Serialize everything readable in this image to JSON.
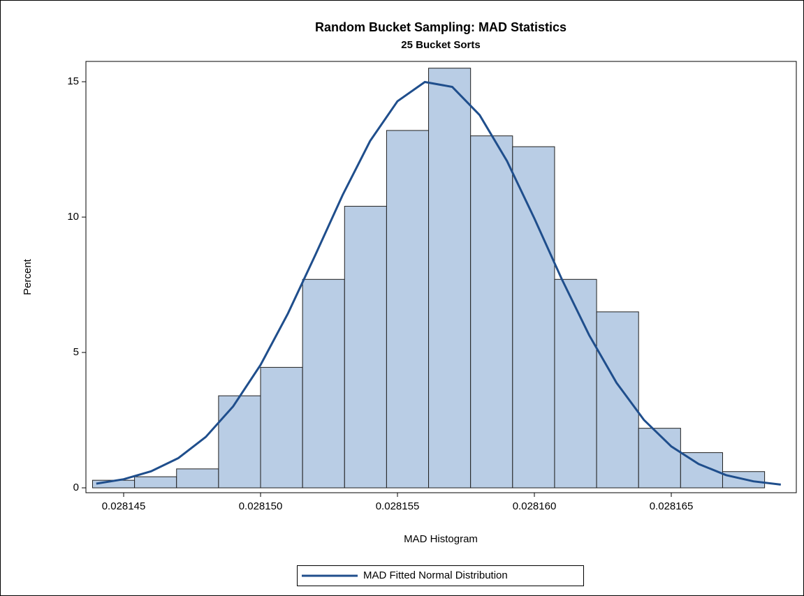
{
  "chart_data": {
    "type": "histogram",
    "title": "Random Bucket Sampling: MAD Statistics",
    "subtitle": "25 Bucket Sorts",
    "x_label": "MAD Histogram",
    "y_label": "Percent",
    "bins": [
      0.028143864,
      0.028145398,
      0.028146932,
      0.028148466,
      0.02815,
      0.028151534,
      0.028153068,
      0.028154602,
      0.028156136,
      0.02815767,
      0.028159204,
      0.028160738,
      0.028162272,
      0.028163806,
      0.02816534,
      0.028166874,
      0.028168408
    ],
    "values": [
      0.28,
      0.41,
      0.7,
      3.4,
      4.45,
      7.7,
      10.4,
      13.2,
      15.5,
      13.0,
      12.6,
      7.7,
      6.5,
      2.2,
      1.3,
      0.6
    ],
    "color": "#b9cde5",
    "edge_color": "#1f1f1f",
    "series": [
      {
        "name": "MAD Fitted Normal Distribution",
        "color": "#1f4e8c",
        "x": [
          0.028144,
          0.028145,
          0.028146,
          0.028147,
          0.028148,
          0.028149,
          0.02815,
          0.028151,
          0.028152,
          0.028153,
          0.028154,
          0.028155,
          0.028156,
          0.028157,
          0.028158,
          0.028159,
          0.02816,
          0.028161,
          0.028162,
          0.028163,
          0.028164,
          0.028165,
          0.028166,
          0.028167,
          0.028168,
          0.028169
        ],
        "values": [
          0.156,
          0.318,
          0.61,
          1.1,
          1.88,
          3.01,
          4.54,
          6.44,
          8.6,
          10.82,
          12.81,
          14.28,
          14.99,
          14.81,
          13.77,
          12.07,
          9.95,
          7.71,
          5.64,
          3.88,
          2.51,
          1.53,
          0.88,
          0.47,
          0.24,
          0.12
        ]
      }
    ],
    "xlim": [
      0.028143622,
      0.028169566
    ],
    "xticks": [
      0.028145,
      {
        "value": 0.02815,
        "label": "0.028150"
      },
      0.028155,
      {
        "value": 0.02816,
        "label": "0.028160"
      },
      0.028165
    ],
    "ylim": [
      -0.18,
      15.75
    ],
    "yticks": [
      0,
      5,
      10,
      15
    ],
    "legend": "bottom"
  }
}
